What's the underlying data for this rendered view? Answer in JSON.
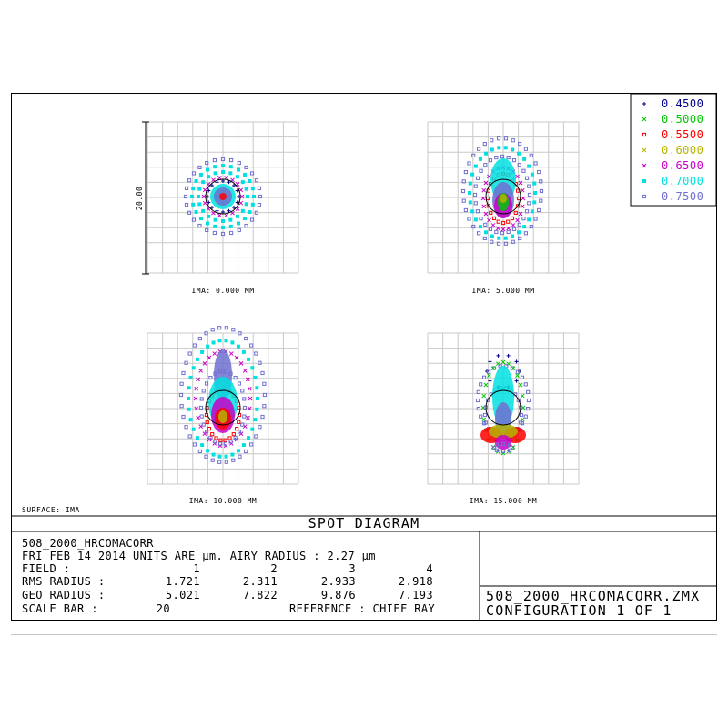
{
  "colors": {
    "w0": "#00008b",
    "w1": "#00c800",
    "w2": "#ff0000",
    "w3": "#b4b400",
    "w4": "#c800c8",
    "w5": "#00e0e0",
    "w6": "#7070d0",
    "grid": "#c8c8c8",
    "airy": "#000000"
  },
  "legend": {
    "items": [
      {
        "marker": "+",
        "label": "0.4500"
      },
      {
        "marker": "x",
        "label": "0.5000"
      },
      {
        "marker": "square",
        "label": "0.5500"
      },
      {
        "marker": "x",
        "label": "0.6000"
      },
      {
        "marker": "x",
        "label": "0.6500"
      },
      {
        "marker": "square",
        "label": "0.7000"
      },
      {
        "marker": "square",
        "label": "0.7500"
      }
    ]
  },
  "scale_bar_label": "20.00",
  "panels": [
    {
      "label": "IMA: 0.000 MM"
    },
    {
      "label": "IMA: 5.000 MM"
    },
    {
      "label": "IMA: 10.000 MM"
    },
    {
      "label": "IMA: 15.000 MM"
    }
  ],
  "surface_label": "SURFACE: IMA",
  "title": "SPOT DIAGRAM",
  "info": {
    "lens_name": "508_2000_HRCOMACORR",
    "date_units": "FRI FEB 14 2014  UNITS ARE µm.  AIRY RADIUS : 2.27 µm",
    "field": {
      "label": "FIELD      :",
      "values": [
        "1",
        "2",
        "3",
        "4"
      ]
    },
    "rms": {
      "label": "RMS RADIUS :",
      "values": [
        "1.721",
        "2.311",
        "2.933",
        "2.918"
      ]
    },
    "geo": {
      "label": "GEO RADIUS :",
      "values": [
        "5.021",
        "7.822",
        "9.876",
        "7.193"
      ]
    },
    "scale": {
      "label": "SCALE BAR  :",
      "value": "20"
    },
    "reference": "REFERENCE  : CHIEF RAY"
  },
  "file_name": "508_2000_HRCOMACORR.ZMX",
  "configuration": "CONFIGURATION 1 OF 1"
}
